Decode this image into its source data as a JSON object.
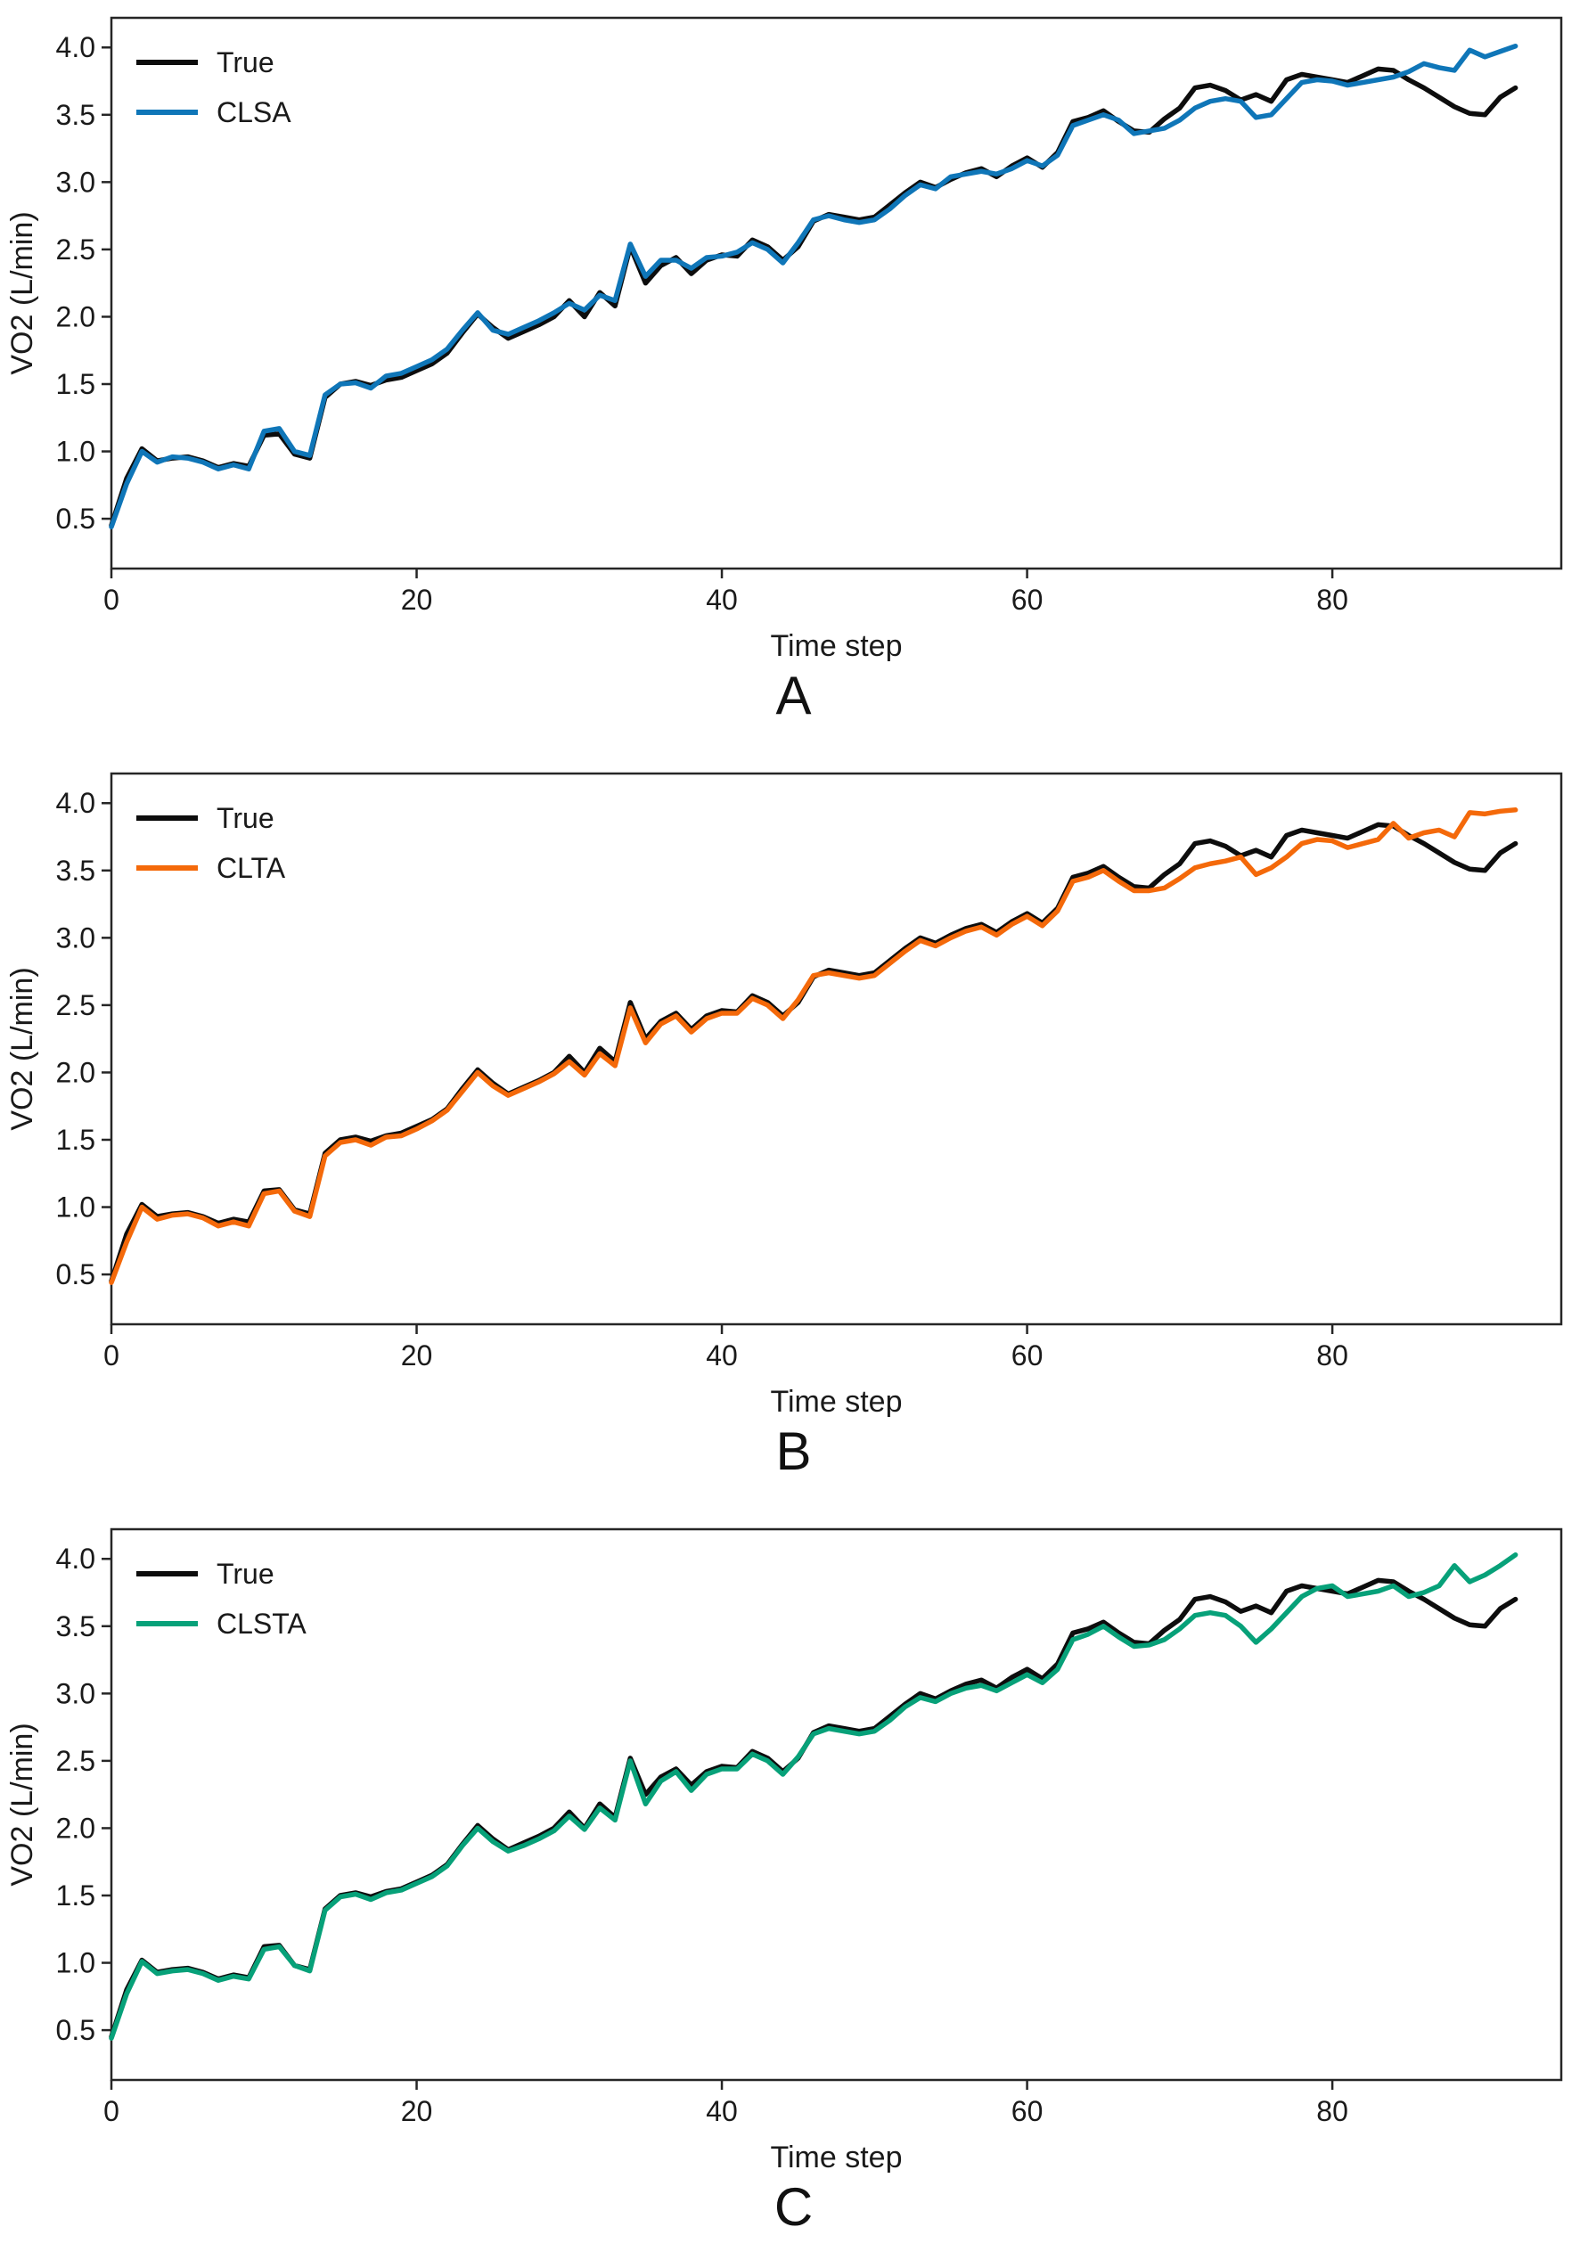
{
  "figure_title": "",
  "colors": {
    "true_line": "#0d0d0d",
    "clsa_line": "#0f76b8",
    "clta_line": "#f4690a",
    "clsta_line": "#07a179",
    "spine": "#262626",
    "text": "#1a1a1a"
  },
  "chart_data": [
    {
      "type": "line",
      "panel_label": "A",
      "xlabel": "Time step",
      "ylabel": "VO2 (L/min)",
      "xlim": [
        0,
        95
      ],
      "ylim": [
        0.13,
        4.22
      ],
      "xticks": [
        "0",
        "20",
        "40",
        "60",
        "80"
      ],
      "xtick_values": [
        0,
        20,
        40,
        60,
        80
      ],
      "yticks": [
        "0.5",
        "1.0",
        "1.5",
        "2.0",
        "2.5",
        "3.0",
        "3.5",
        "4.0"
      ],
      "ytick_values": [
        0.5,
        1.0,
        1.5,
        2.0,
        2.5,
        3.0,
        3.5,
        4.0
      ],
      "grid": false,
      "legend_position": "upper left",
      "x_start": 0,
      "x_step": 1,
      "series": [
        {
          "name": "True",
          "color": "#0d0d0d",
          "values": [
            0.45,
            0.8,
            1.02,
            0.93,
            0.95,
            0.96,
            0.93,
            0.88,
            0.91,
            0.89,
            1.12,
            1.13,
            0.98,
            0.95,
            1.4,
            1.5,
            1.52,
            1.49,
            1.53,
            1.55,
            1.6,
            1.65,
            1.73,
            1.88,
            2.02,
            1.92,
            1.84,
            1.89,
            1.94,
            2.0,
            2.12,
            2.0,
            2.18,
            2.08,
            2.52,
            2.25,
            2.38,
            2.44,
            2.32,
            2.42,
            2.46,
            2.45,
            2.57,
            2.52,
            2.42,
            2.52,
            2.71,
            2.76,
            2.74,
            2.72,
            2.74,
            2.83,
            2.92,
            3.0,
            2.96,
            3.02,
            3.07,
            3.1,
            3.04,
            3.12,
            3.18,
            3.11,
            3.22,
            3.45,
            3.48,
            3.53,
            3.45,
            3.38,
            3.37,
            3.47,
            3.55,
            3.7,
            3.72,
            3.68,
            3.61,
            3.65,
            3.6,
            3.76,
            3.8,
            3.78,
            3.76,
            3.74,
            3.79,
            3.84,
            3.83,
            3.76,
            3.7,
            3.63,
            3.56,
            3.51,
            3.5,
            3.63,
            3.7
          ]
        },
        {
          "name": "CLSA",
          "color": "#0f76b8",
          "values": [
            0.44,
            0.76,
            1.0,
            0.92,
            0.96,
            0.95,
            0.92,
            0.87,
            0.9,
            0.87,
            1.15,
            1.17,
            1.0,
            0.97,
            1.42,
            1.5,
            1.51,
            1.47,
            1.56,
            1.58,
            1.63,
            1.68,
            1.76,
            1.9,
            2.03,
            1.9,
            1.87,
            1.92,
            1.97,
            2.03,
            2.1,
            2.05,
            2.16,
            2.12,
            2.54,
            2.3,
            2.42,
            2.42,
            2.36,
            2.44,
            2.45,
            2.48,
            2.55,
            2.5,
            2.4,
            2.55,
            2.72,
            2.75,
            2.72,
            2.7,
            2.72,
            2.8,
            2.9,
            2.98,
            2.95,
            3.04,
            3.06,
            3.08,
            3.06,
            3.1,
            3.16,
            3.12,
            3.2,
            3.42,
            3.46,
            3.5,
            3.46,
            3.36,
            3.38,
            3.4,
            3.46,
            3.55,
            3.6,
            3.62,
            3.6,
            3.48,
            3.5,
            3.62,
            3.74,
            3.76,
            3.75,
            3.72,
            3.74,
            3.76,
            3.78,
            3.82,
            3.88,
            3.85,
            3.83,
            3.98,
            3.93,
            3.97,
            4.01
          ]
        }
      ]
    },
    {
      "type": "line",
      "panel_label": "B",
      "xlabel": "Time step",
      "ylabel": "VO2 (L/min)",
      "xlim": [
        0,
        95
      ],
      "ylim": [
        0.13,
        4.22
      ],
      "xticks": [
        "0",
        "20",
        "40",
        "60",
        "80"
      ],
      "xtick_values": [
        0,
        20,
        40,
        60,
        80
      ],
      "yticks": [
        "0.5",
        "1.0",
        "1.5",
        "2.0",
        "2.5",
        "3.0",
        "3.5",
        "4.0"
      ],
      "ytick_values": [
        0.5,
        1.0,
        1.5,
        2.0,
        2.5,
        3.0,
        3.5,
        4.0
      ],
      "grid": false,
      "legend_position": "upper left",
      "x_start": 0,
      "x_step": 1,
      "series": [
        {
          "name": "True",
          "color": "#0d0d0d",
          "values": [
            0.45,
            0.8,
            1.02,
            0.93,
            0.95,
            0.96,
            0.93,
            0.88,
            0.91,
            0.89,
            1.12,
            1.13,
            0.98,
            0.95,
            1.4,
            1.5,
            1.52,
            1.49,
            1.53,
            1.55,
            1.6,
            1.65,
            1.73,
            1.88,
            2.02,
            1.92,
            1.84,
            1.89,
            1.94,
            2.0,
            2.12,
            2.0,
            2.18,
            2.08,
            2.52,
            2.25,
            2.38,
            2.44,
            2.32,
            2.42,
            2.46,
            2.45,
            2.57,
            2.52,
            2.42,
            2.52,
            2.71,
            2.76,
            2.74,
            2.72,
            2.74,
            2.83,
            2.92,
            3.0,
            2.96,
            3.02,
            3.07,
            3.1,
            3.04,
            3.12,
            3.18,
            3.11,
            3.22,
            3.45,
            3.48,
            3.53,
            3.45,
            3.38,
            3.37,
            3.47,
            3.55,
            3.7,
            3.72,
            3.68,
            3.61,
            3.65,
            3.6,
            3.76,
            3.8,
            3.78,
            3.76,
            3.74,
            3.79,
            3.84,
            3.83,
            3.76,
            3.7,
            3.63,
            3.56,
            3.51,
            3.5,
            3.63,
            3.7
          ]
        },
        {
          "name": "CLTA",
          "color": "#f4690a",
          "values": [
            0.44,
            0.74,
            1.0,
            0.91,
            0.94,
            0.95,
            0.92,
            0.86,
            0.89,
            0.86,
            1.1,
            1.12,
            0.97,
            0.93,
            1.38,
            1.48,
            1.5,
            1.46,
            1.52,
            1.53,
            1.58,
            1.64,
            1.72,
            1.86,
            2.0,
            1.9,
            1.83,
            1.88,
            1.93,
            1.99,
            2.08,
            1.98,
            2.14,
            2.05,
            2.48,
            2.22,
            2.36,
            2.42,
            2.3,
            2.4,
            2.44,
            2.44,
            2.55,
            2.5,
            2.4,
            2.54,
            2.72,
            2.74,
            2.72,
            2.7,
            2.72,
            2.81,
            2.9,
            2.98,
            2.94,
            3.0,
            3.05,
            3.08,
            3.02,
            3.1,
            3.16,
            3.09,
            3.2,
            3.42,
            3.45,
            3.5,
            3.42,
            3.35,
            3.35,
            3.37,
            3.44,
            3.52,
            3.55,
            3.57,
            3.6,
            3.47,
            3.52,
            3.6,
            3.7,
            3.73,
            3.72,
            3.67,
            3.7,
            3.73,
            3.85,
            3.74,
            3.78,
            3.8,
            3.75,
            3.93,
            3.92,
            3.94,
            3.95
          ]
        }
      ]
    },
    {
      "type": "line",
      "panel_label": "C",
      "xlabel": "Time step",
      "ylabel": "VO2 (L/min)",
      "xlim": [
        0,
        95
      ],
      "ylim": [
        0.13,
        4.22
      ],
      "xticks": [
        "0",
        "20",
        "40",
        "60",
        "80"
      ],
      "xtick_values": [
        0,
        20,
        40,
        60,
        80
      ],
      "yticks": [
        "0.5",
        "1.0",
        "1.5",
        "2.0",
        "2.5",
        "3.0",
        "3.5",
        "4.0"
      ],
      "ytick_values": [
        0.5,
        1.0,
        1.5,
        2.0,
        2.5,
        3.0,
        3.5,
        4.0
      ],
      "grid": false,
      "legend_position": "upper left",
      "x_start": 0,
      "x_step": 1,
      "series": [
        {
          "name": "True",
          "color": "#0d0d0d",
          "values": [
            0.45,
            0.8,
            1.02,
            0.93,
            0.95,
            0.96,
            0.93,
            0.88,
            0.91,
            0.89,
            1.12,
            1.13,
            0.98,
            0.95,
            1.4,
            1.5,
            1.52,
            1.49,
            1.53,
            1.55,
            1.6,
            1.65,
            1.73,
            1.88,
            2.02,
            1.92,
            1.84,
            1.89,
            1.94,
            2.0,
            2.12,
            2.0,
            2.18,
            2.08,
            2.52,
            2.25,
            2.38,
            2.44,
            2.32,
            2.42,
            2.46,
            2.45,
            2.57,
            2.52,
            2.42,
            2.52,
            2.71,
            2.76,
            2.74,
            2.72,
            2.74,
            2.83,
            2.92,
            3.0,
            2.96,
            3.02,
            3.07,
            3.1,
            3.04,
            3.12,
            3.18,
            3.11,
            3.22,
            3.45,
            3.48,
            3.53,
            3.45,
            3.38,
            3.37,
            3.47,
            3.55,
            3.7,
            3.72,
            3.68,
            3.61,
            3.65,
            3.6,
            3.76,
            3.8,
            3.78,
            3.76,
            3.74,
            3.79,
            3.84,
            3.83,
            3.76,
            3.7,
            3.63,
            3.56,
            3.51,
            3.5,
            3.63,
            3.7
          ]
        },
        {
          "name": "CLSTA",
          "color": "#07a179",
          "values": [
            0.44,
            0.77,
            1.01,
            0.92,
            0.94,
            0.95,
            0.92,
            0.87,
            0.9,
            0.88,
            1.1,
            1.12,
            0.98,
            0.94,
            1.39,
            1.49,
            1.51,
            1.47,
            1.52,
            1.54,
            1.59,
            1.64,
            1.72,
            1.87,
            2.0,
            1.9,
            1.83,
            1.87,
            1.92,
            1.98,
            2.09,
            1.99,
            2.15,
            2.06,
            2.5,
            2.18,
            2.35,
            2.42,
            2.28,
            2.4,
            2.44,
            2.44,
            2.55,
            2.5,
            2.4,
            2.53,
            2.7,
            2.74,
            2.72,
            2.7,
            2.72,
            2.8,
            2.9,
            2.97,
            2.94,
            3.0,
            3.04,
            3.06,
            3.02,
            3.08,
            3.14,
            3.08,
            3.18,
            3.4,
            3.44,
            3.5,
            3.42,
            3.35,
            3.36,
            3.4,
            3.48,
            3.58,
            3.6,
            3.58,
            3.5,
            3.38,
            3.48,
            3.6,
            3.72,
            3.78,
            3.8,
            3.72,
            3.74,
            3.76,
            3.8,
            3.72,
            3.75,
            3.8,
            3.95,
            3.83,
            3.88,
            3.95,
            4.03
          ]
        }
      ]
    }
  ]
}
